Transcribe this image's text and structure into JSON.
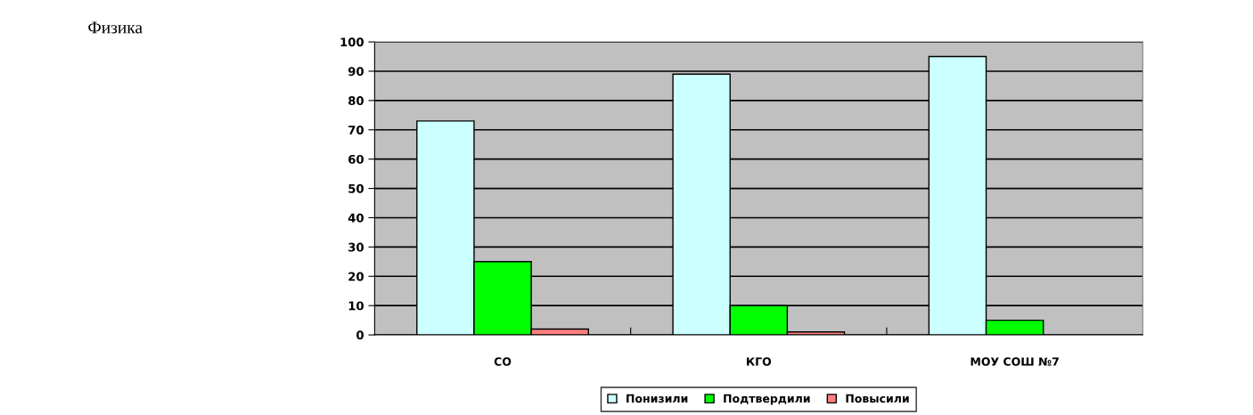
{
  "chart_data": {
    "type": "bar",
    "categories": [
      "СО",
      "КГО",
      "МОУ СОШ №7"
    ],
    "series": [
      {
        "name": "Понизили",
        "color": "#ccffff",
        "values": [
          73,
          89,
          95
        ]
      },
      {
        "name": "Подтвердили",
        "color": "#00ff00",
        "values": [
          25,
          10,
          5
        ]
      },
      {
        "name": "Повысили",
        "color": "#ff8080",
        "values": [
          2,
          1,
          null
        ]
      }
    ],
    "ylim": [
      0,
      100
    ],
    "yticks": [
      0,
      10,
      20,
      30,
      40,
      50,
      60,
      70,
      80,
      90,
      100
    ],
    "grid": "y",
    "legend": "bottom",
    "annotations": [
      "Физика"
    ]
  }
}
